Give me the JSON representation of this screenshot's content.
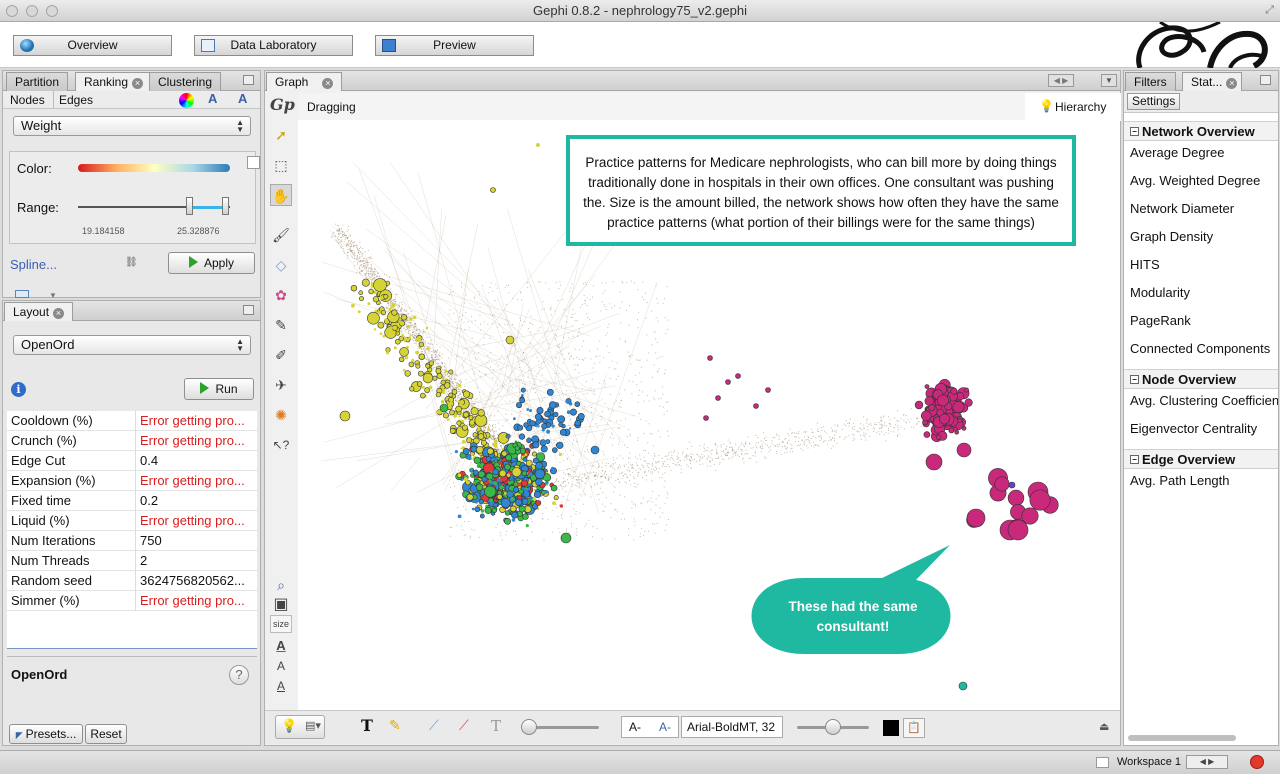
{
  "window": {
    "title": "Gephi 0.8.2 - nephrology75_v2.gephi"
  },
  "modes": [
    {
      "label": "Overview",
      "icon": "globe-icon"
    },
    {
      "label": "Data Laboratory",
      "icon": "table-icon"
    },
    {
      "label": "Preview",
      "icon": "monitor-icon"
    }
  ],
  "left_top": {
    "tabs": [
      "Partition",
      "Ranking",
      "Clustering"
    ],
    "subtabs": [
      "Nodes",
      "Edges"
    ],
    "attribute": "Weight",
    "color_label": "Color:",
    "range_label": "Range:",
    "range_min": "19.184158",
    "range_max": "25.328876",
    "spline_label": "Spline...",
    "apply_label": "Apply"
  },
  "layout": {
    "tab": "Layout",
    "algorithm": "OpenOrd",
    "run_label": "Run",
    "properties": [
      {
        "name": "Cooldown (%)",
        "value": "Error getting pro...",
        "error": true
      },
      {
        "name": "Crunch (%)",
        "value": "Error getting pro...",
        "error": true
      },
      {
        "name": "Edge Cut",
        "value": "0.4",
        "error": false
      },
      {
        "name": "Expansion (%)",
        "value": "Error getting pro...",
        "error": true
      },
      {
        "name": "Fixed time",
        "value": "0.2",
        "error": false
      },
      {
        "name": "Liquid (%)",
        "value": "Error getting pro...",
        "error": true
      },
      {
        "name": "Num Iterations",
        "value": "750",
        "error": false
      },
      {
        "name": "Num Threads",
        "value": "2",
        "error": false
      },
      {
        "name": "Random seed",
        "value": "3624756820562...",
        "error": false
      },
      {
        "name": "Simmer (%)",
        "value": "Error getting pro...",
        "error": true
      }
    ],
    "description_title": "OpenOrd",
    "help_label": "?",
    "presets_label": "Presets...",
    "reset_label": "Reset"
  },
  "graph": {
    "tab": "Graph",
    "mode_label": "Dragging",
    "hierarchy_label": "Hierarchy",
    "annotation_text": "Practice patterns for Medicare nephrologists, who can bill more by doing things traditionally done in hospitals in their own offices. One consultant was pushing the. Size is the amount billed, the network shows how often they have the same practice patterns (what portion of their billings were for the same things)",
    "callout_text": "These had the same consultant!",
    "size_label": "size",
    "font_label": "Arial-BoldMT, 32",
    "colors": {
      "yellow": "#d6d335",
      "blue": "#2e86d4",
      "red": "#e0393a",
      "green": "#3bb84a",
      "magenta": "#c8297a",
      "edge": "#9b8464",
      "teal": "#1fb8a1"
    }
  },
  "right": {
    "tabs": [
      "Filters",
      "Stat..."
    ],
    "subtab": "Settings",
    "sections": [
      {
        "title": "Network Overview",
        "items": [
          "Average Degree",
          "Avg. Weighted Degree",
          "Network Diameter",
          "Graph Density",
          "HITS",
          "Modularity",
          "PageRank",
          "Connected Components"
        ]
      },
      {
        "title": "Node Overview",
        "items": [
          "Avg. Clustering Coefficient",
          "Eigenvector Centrality"
        ]
      },
      {
        "title": "Edge Overview",
        "items": [
          "Avg. Path Length"
        ]
      }
    ]
  },
  "status": {
    "workspace": "Workspace 1"
  }
}
